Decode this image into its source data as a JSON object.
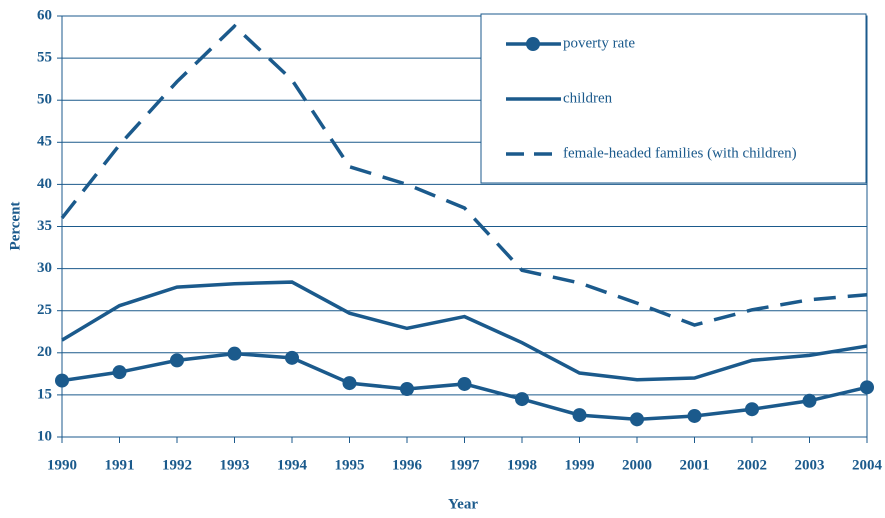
{
  "chart_data": {
    "type": "line",
    "x_label": "Year",
    "y_label": "Percent",
    "categories": [
      "1990",
      "1991",
      "1992",
      "1993",
      "1994",
      "1995",
      "1996",
      "1997",
      "1998",
      "1999",
      "2000",
      "2001",
      "2002",
      "2003",
      "2004"
    ],
    "series": [
      {
        "name": "poverty rate",
        "color": "#1b5a8c",
        "style": "solid",
        "markers": true,
        "values": [
          16.7,
          17.7,
          19.1,
          19.9,
          19.4,
          16.4,
          15.7,
          16.3,
          14.5,
          12.6,
          12.1,
          12.5,
          13.3,
          14.3,
          15.9
        ]
      },
      {
        "name": "children",
        "color": "#1b5a8c",
        "style": "solid",
        "markers": false,
        "values": [
          21.5,
          25.6,
          27.8,
          28.2,
          28.4,
          24.7,
          22.9,
          24.3,
          21.2,
          17.6,
          16.8,
          17.0,
          19.1,
          19.7,
          20.8
        ]
      },
      {
        "name": "female-headed families (with children)",
        "color": "#1b5a8c",
        "style": "dashed",
        "markers": false,
        "values": [
          36.0,
          44.7,
          52.2,
          58.8,
          52.4,
          42.1,
          40.0,
          37.2,
          29.8,
          28.3,
          25.9,
          23.3,
          25.1,
          26.3,
          26.9
        ]
      }
    ],
    "ylim": [
      10,
      60
    ],
    "yticks": [
      10,
      15,
      20,
      25,
      30,
      35,
      40,
      45,
      50,
      55,
      60
    ],
    "grid": true,
    "legend": "upper right"
  }
}
